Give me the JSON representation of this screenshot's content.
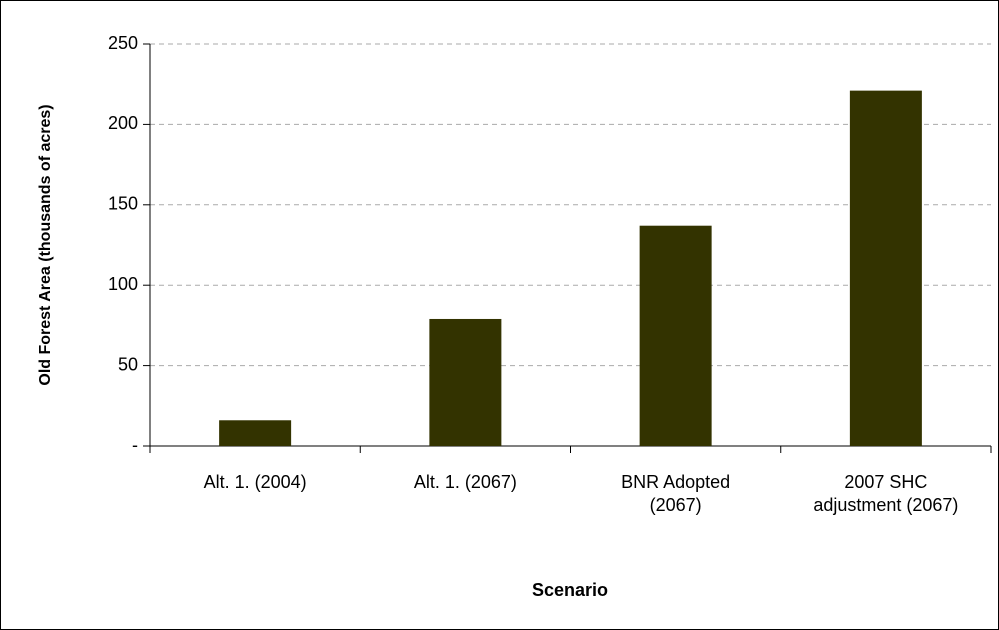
{
  "chart_data": {
    "type": "bar",
    "categories": [
      "Alt. 1. (2004)",
      "Alt. 1. (2067)",
      "BNR Adopted (2067)",
      "2007 SHC adjustment (2067)"
    ],
    "values": [
      16,
      79,
      137,
      221
    ],
    "color": "#333300",
    "x_label": "Scenario",
    "y_label": "Old Forest Area (thousands of acres)",
    "ylim": [
      0,
      250
    ],
    "yticks": [
      {
        "value": 0,
        "label": "-"
      },
      50,
      100,
      150,
      200,
      250
    ],
    "grid": true
  }
}
